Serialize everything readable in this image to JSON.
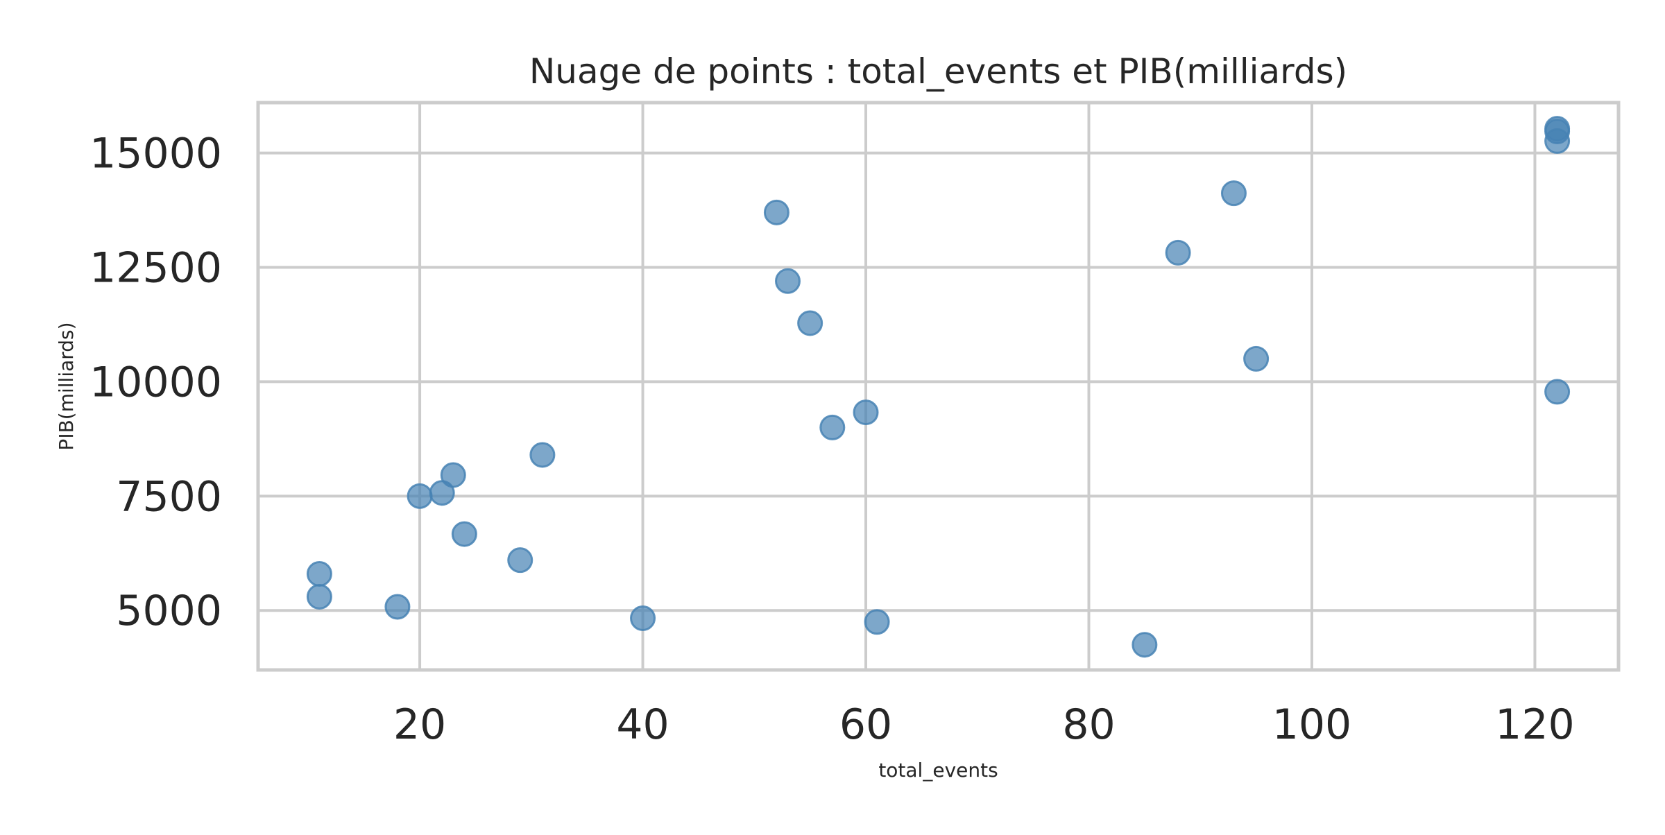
{
  "chart_data": {
    "type": "scatter",
    "title": "Nuage de points : total_events et PIB(milliards)",
    "xlabel": "total_events",
    "ylabel": "PIB(milliards)",
    "xlim": [
      5.5,
      127.5
    ],
    "ylim": [
      3700,
      16100
    ],
    "x_ticks": [
      20,
      40,
      60,
      80,
      100,
      120
    ],
    "y_ticks": [
      5000,
      7500,
      10000,
      12500,
      15000
    ],
    "x_tick_labels": [
      "20",
      "40",
      "60",
      "80",
      "100",
      "120"
    ],
    "y_tick_labels": [
      "5000",
      "7500",
      "10000",
      "12500",
      "15000"
    ],
    "grid": true,
    "legend": false,
    "marker_color": "#4682b4",
    "points": [
      {
        "x": 11,
        "y": 5800
      },
      {
        "x": 11,
        "y": 5300
      },
      {
        "x": 18,
        "y": 5080
      },
      {
        "x": 20,
        "y": 7500
      },
      {
        "x": 22,
        "y": 7570
      },
      {
        "x": 23,
        "y": 7960
      },
      {
        "x": 24,
        "y": 6670
      },
      {
        "x": 29,
        "y": 6100
      },
      {
        "x": 31,
        "y": 8400
      },
      {
        "x": 40,
        "y": 4830
      },
      {
        "x": 52,
        "y": 13700
      },
      {
        "x": 53,
        "y": 12200
      },
      {
        "x": 55,
        "y": 11280
      },
      {
        "x": 57,
        "y": 9000
      },
      {
        "x": 60,
        "y": 9330
      },
      {
        "x": 61,
        "y": 4750
      },
      {
        "x": 85,
        "y": 4250
      },
      {
        "x": 88,
        "y": 12820
      },
      {
        "x": 93,
        "y": 14120
      },
      {
        "x": 95,
        "y": 10500
      },
      {
        "x": 122,
        "y": 15530
      },
      {
        "x": 122,
        "y": 15470
      },
      {
        "x": 122,
        "y": 15260
      },
      {
        "x": 122,
        "y": 9780
      }
    ]
  }
}
